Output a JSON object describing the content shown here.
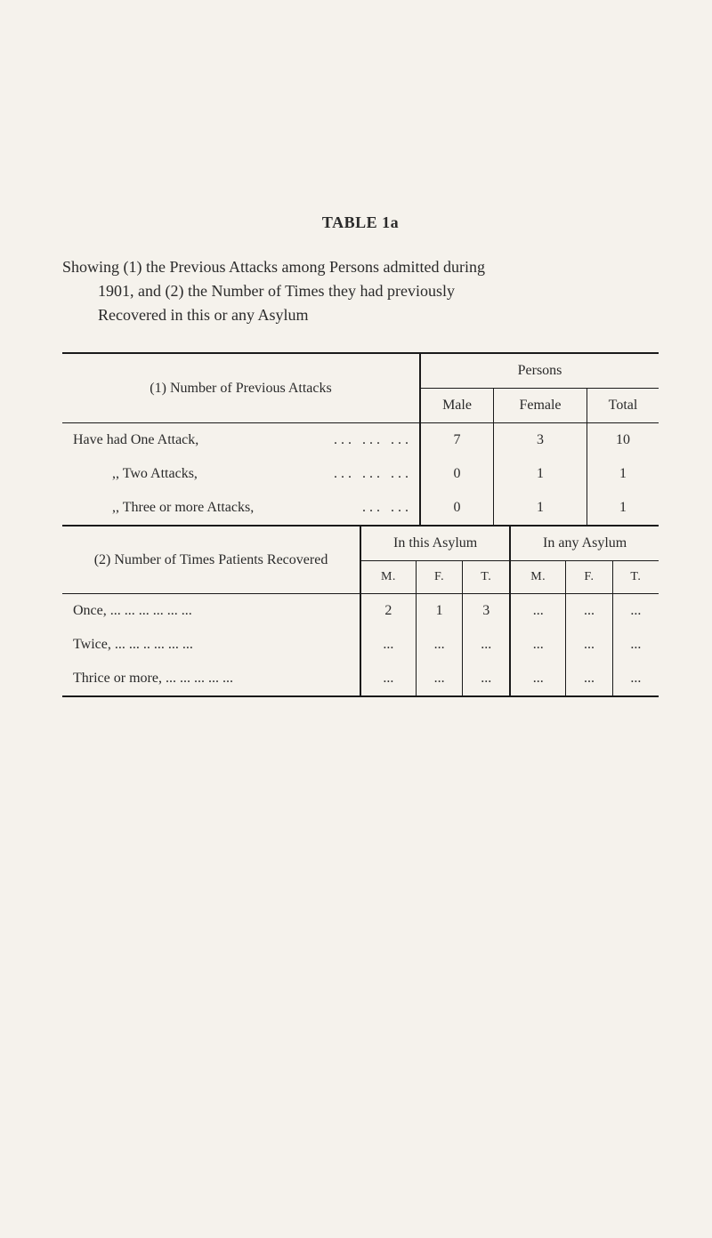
{
  "title": "TABLE 1a",
  "intro": {
    "line1": "Showing (1) the Previous Attacks among Persons admitted during",
    "line2": "1901, and (2) the Number of Times they had previously",
    "line3": "Recovered in this or any Asylum"
  },
  "table1": {
    "num_label": "(1) Number of Previous Attacks",
    "persons_label": "Persons",
    "columns": {
      "male": "Male",
      "female": "Female",
      "total": "Total"
    },
    "rows": [
      {
        "label": "Have had One Attack,",
        "ell": "...   ...   ...",
        "male": "7",
        "female": "3",
        "total": "10",
        "indent": false
      },
      {
        "label": ",,     Two Attacks,",
        "ell": "...   ...   ...",
        "male": "0",
        "female": "1",
        "total": "1",
        "indent": true
      },
      {
        "label": ",,     Three or more Attacks,",
        "ell": "...   ...",
        "male": "0",
        "female": "1",
        "total": "1",
        "indent": true
      }
    ]
  },
  "table2": {
    "num_label": "(2) Number of Times Patients Recovered",
    "group1": "In this Asylum",
    "group2": "In any Asylum",
    "sub": {
      "m": "M.",
      "f": "F.",
      "t": "T."
    },
    "rows": [
      {
        "label": "Once,     ...     ...     ...     ...     ...     ...",
        "cells": [
          "2",
          "1",
          "3",
          "...",
          "...",
          "..."
        ]
      },
      {
        "label": "Twice,    ...     ...     ..     ...     ...     ...",
        "cells": [
          "...",
          "...",
          "...",
          "...",
          "...",
          "..."
        ]
      },
      {
        "label": "Thrice or more, ...     ...     ...     ...     ...",
        "cells": [
          "...",
          "...",
          "...",
          "...",
          "...",
          "..."
        ]
      }
    ]
  }
}
